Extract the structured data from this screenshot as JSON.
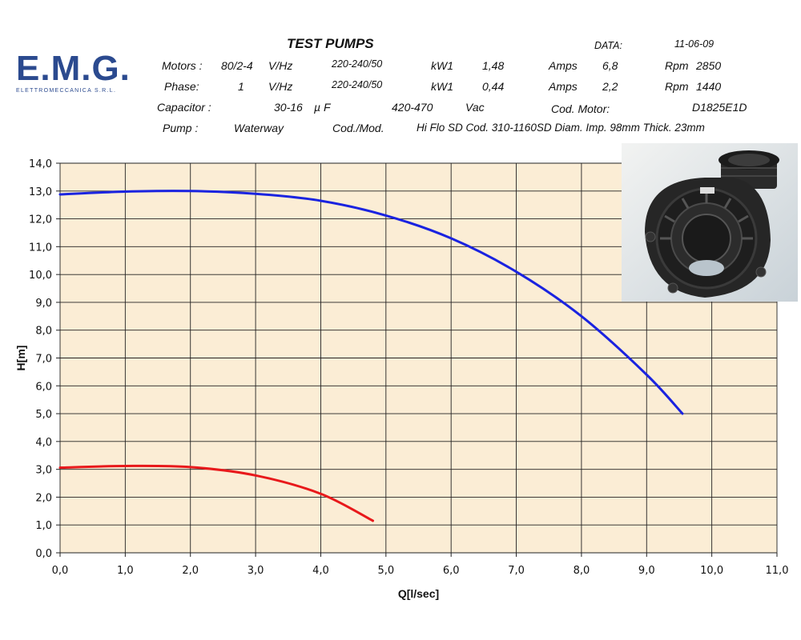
{
  "logo": {
    "text": "E.M.G.",
    "subtitle": "ELETTROMECCANICA S.R.L."
  },
  "header": {
    "title": "TEST PUMPS",
    "data_label": "DATA:",
    "date": "11-06-09",
    "rows": [
      {
        "label": "Motors :",
        "v1": "80/2-4",
        "u1": "V/Hz",
        "v2": "220-240/50",
        "u2": "kW1",
        "v3": "1,48",
        "u3": "Amps",
        "v4": "6,8",
        "u4": "Rpm",
        "v5": "2850"
      },
      {
        "label": "Phase:",
        "v1": "1",
        "u1": "V/Hz",
        "v2": "220-240/50",
        "u2": "kW1",
        "v3": "0,44",
        "u3": "Amps",
        "v4": "2,2",
        "u4": "Rpm",
        "v5": "1440"
      }
    ],
    "capacitor_label": "Capacitor :",
    "capacitor_value": "30-16",
    "capacitor_unit": "µ F",
    "capacitor_voltage": "420-470",
    "capacitor_vunit": "Vac",
    "cod_motor_label": "Cod. Motor:",
    "cod_motor_value": "D1825E1D",
    "pump_label": "Pump :",
    "pump_value": "Waterway",
    "cod_mod_label": "Cod./Mod.",
    "cod_mod_value": "Hi Flo SD Cod. 310-1160SD Diam. Imp. 98mm Thick. 23mm"
  },
  "colors": {
    "plot_background": "#fbedd5",
    "grid": "#222222",
    "series_high": "#1a23e0",
    "series_low": "#e8191b",
    "pump_body": "#262626"
  },
  "chart_data": {
    "type": "line",
    "title": "",
    "xlabel": "Q[l/sec]",
    "ylabel": "H[m]",
    "xlim": [
      0,
      11
    ],
    "ylim": [
      0,
      14
    ],
    "x_ticks": [
      "0,0",
      "1,0",
      "2,0",
      "3,0",
      "4,0",
      "5,0",
      "6,0",
      "7,0",
      "8,0",
      "9,0",
      "10,0",
      "11,0"
    ],
    "y_ticks": [
      "0,0",
      "1,0",
      "2,0",
      "3,0",
      "4,0",
      "5,0",
      "6,0",
      "7,0",
      "8,0",
      "9,0",
      "10,0",
      "11,0",
      "12,0",
      "13,0",
      "14,0"
    ],
    "grid": true,
    "legend": "none",
    "series": [
      {
        "color": "#1a23e0",
        "points": [
          [
            0,
            12.88
          ],
          [
            1,
            12.98
          ],
          [
            2,
            13.0
          ],
          [
            3,
            12.9
          ],
          [
            4,
            12.65
          ],
          [
            5,
            12.12
          ],
          [
            6,
            11.3
          ],
          [
            7,
            10.1
          ],
          [
            8,
            8.5
          ],
          [
            9,
            6.4
          ],
          [
            9.55,
            5.0
          ]
        ]
      },
      {
        "color": "#e8191b",
        "points": [
          [
            0,
            3.06
          ],
          [
            1,
            3.12
          ],
          [
            2,
            3.08
          ],
          [
            3,
            2.78
          ],
          [
            4,
            2.12
          ],
          [
            4.8,
            1.15
          ]
        ]
      }
    ]
  }
}
